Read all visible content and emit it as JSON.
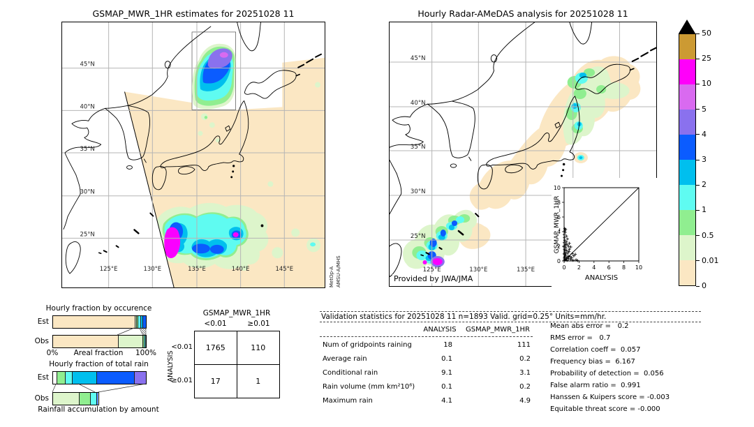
{
  "left_map": {
    "title": "GSMAP_MWR_1HR estimates for 20251028 11",
    "lat_labels": [
      "45°N",
      "40°N",
      "35°N",
      "30°N",
      "25°N"
    ],
    "lon_labels": [
      "125°E",
      "130°E",
      "135°E",
      "140°E",
      "145°E"
    ],
    "sensor_line1": "MetOp-A",
    "sensor_line2": "AMSU-A/MHS"
  },
  "right_map": {
    "title": "Hourly Radar-AMeDAS analysis for 20251028 11",
    "lat_labels": [
      "45°N",
      "40°N",
      "35°N",
      "30°N",
      "25°N"
    ],
    "lon_labels": [
      "125°E",
      "130°E",
      "135°E"
    ],
    "credit": "Provided by JWA/JMA"
  },
  "colorbar": {
    "labels_bottom_to_top": [
      "0",
      "0.01",
      "0.5",
      "1",
      "2",
      "3",
      "4",
      "5",
      "10",
      "25",
      "50"
    ],
    "colors_bottom_to_top": [
      "#fbe7c3",
      "#ddf5cb",
      "#90ee90",
      "#5ffbf1",
      "#00bfee",
      "#0b5cff",
      "#8a71ee",
      "#d96af0",
      "#ff00fa",
      "#cc9a33"
    ],
    "over_color": "#000000",
    "units": "mm/hr"
  },
  "occurrence_chart": {
    "title": "Hourly fraction by occurence",
    "row_labels": [
      "Est",
      "Obs"
    ],
    "xlabel": "Areal fraction",
    "xmin_label": "0%",
    "xmax_label": "100%"
  },
  "totalrain_chart": {
    "title": "Hourly fraction of total rain",
    "row_labels": [
      "Est",
      "Obs"
    ],
    "xlabel": "Rainfall accumulation by amount"
  },
  "contingency": {
    "title": "GSMAP_MWR_1HR",
    "col_labels": [
      "<0.01",
      "≥0.01"
    ],
    "row_axis_label": "ANALYSIS",
    "row_labels": [
      "<0.01",
      "≥0.01"
    ],
    "values": [
      [
        "1765",
        "110"
      ],
      [
        "17",
        "1"
      ]
    ]
  },
  "stats": {
    "header": "Validation statistics for 20251028 11  n=1893 Valid. grid=0.25° Units=mm/hr.",
    "col_headers": [
      "ANALYSIS",
      "GSMAP_MWR_1HR"
    ],
    "rows": [
      [
        "Num of gridpoints raining",
        "18",
        "111"
      ],
      [
        "Average rain",
        "0.1",
        "0.2"
      ],
      [
        "Conditional rain",
        "9.1",
        "3.1"
      ],
      [
        "Rain volume (mm km²10⁶)",
        "0.1",
        "0.2"
      ],
      [
        "Maximum rain",
        "4.1",
        "4.9"
      ]
    ],
    "score_lines": [
      "Mean abs error =   0.2",
      "RMS error =   0.7",
      "Correlation coeff =  0.057",
      "Frequency bias =  6.167",
      "Probability of detection =  0.056",
      "False alarm ratio =  0.991",
      "Hanssen & Kuipers score = -0.003",
      "Equitable threat score = -0.000"
    ]
  },
  "inset": {
    "xlabel": "ANALYSIS",
    "ylabel": "GSMAP_MWR_1HR",
    "ticks": [
      0,
      2,
      4,
      6,
      8,
      10
    ],
    "xlim": [
      0,
      10
    ],
    "ylim": [
      0,
      10
    ]
  },
  "chart_data": [
    {
      "type": "bar",
      "name": "hourly_fraction_by_occurrence",
      "title": "Hourly fraction by occurence",
      "xlabel": "Areal fraction",
      "xlim": [
        0,
        100
      ],
      "bins_mm_per_hr": [
        "0–0.01",
        "0.01–0.5",
        "0.5–1",
        "1–2",
        "2–3",
        "3–4"
      ],
      "colors": [
        "#fbe7c3",
        "#ddf5cb",
        "#90ee90",
        "#5ffbf1",
        "#00bfee",
        "#0b5cff"
      ],
      "series": [
        {
          "name": "Est",
          "values": [
            88,
            1.5,
            1.5,
            3,
            2.5,
            3.5
          ]
        },
        {
          "name": "Obs",
          "values": [
            70,
            26.5,
            1.5,
            1.5,
            0.5,
            0
          ]
        }
      ]
    },
    {
      "type": "bar",
      "name": "hourly_fraction_of_total_rain",
      "title": "Hourly fraction of total rain",
      "xlabel": "Rainfall accumulation by amount",
      "series": [
        {
          "name": "Est",
          "length_frac": 1.0,
          "values": [
            4,
            8.5,
            8,
            26.5,
            40.5,
            12.5
          ],
          "colors": [
            "#ffffff",
            "#90ee90",
            "#5ffbf1",
            "#00bfee",
            "#0b5cff",
            "#8a71ee"
          ]
        },
        {
          "name": "Obs",
          "length_frac": 0.485,
          "values": [
            27.5,
            12,
            7.5,
            1.5
          ],
          "colors": [
            "#ddf5cb",
            "#90ee90",
            "#5ffbf1",
            "#0b5cff"
          ]
        }
      ]
    },
    {
      "type": "table",
      "name": "contingency_2x2",
      "col_header": "GSMAP_MWR_1HR",
      "row_header": "ANALYSIS",
      "col_labels": [
        "<0.01",
        "≥0.01"
      ],
      "row_labels": [
        "<0.01",
        "≥0.01"
      ],
      "values": [
        [
          1765,
          110
        ],
        [
          17,
          1
        ]
      ]
    },
    {
      "type": "scatter",
      "name": "analysis_vs_gsmap",
      "xlabel": "ANALYSIS",
      "ylabel": "GSMAP_MWR_1HR",
      "xlim": [
        0,
        10
      ],
      "ylim": [
        0,
        10
      ],
      "identity_line": true,
      "marker": "+",
      "points": [
        [
          0.05,
          0.2
        ],
        [
          0.1,
          1.2
        ],
        [
          0.1,
          2.1
        ],
        [
          0.15,
          3.9
        ],
        [
          0.2,
          4.3
        ],
        [
          0.1,
          4.1
        ],
        [
          0.05,
          3.2
        ],
        [
          0.3,
          2.6
        ],
        [
          0.25,
          1.8
        ],
        [
          0.4,
          2.2
        ],
        [
          0.5,
          1.1
        ],
        [
          0.6,
          2.0
        ],
        [
          0.7,
          1.6
        ],
        [
          0.9,
          1.9
        ],
        [
          1.1,
          1.0
        ],
        [
          0.8,
          0.6
        ],
        [
          1.3,
          0.7
        ],
        [
          1.5,
          0.9
        ],
        [
          0.2,
          0.15
        ],
        [
          0.3,
          0.4
        ],
        [
          0.15,
          0.7
        ],
        [
          0.05,
          0.9
        ],
        [
          0.35,
          1.4
        ],
        [
          0.45,
          3.0
        ],
        [
          0.1,
          2.8
        ],
        [
          0.2,
          2.3
        ],
        [
          0.05,
          1.6
        ],
        [
          0.6,
          0.3
        ],
        [
          0.9,
          0.2
        ],
        [
          1.2,
          0.1
        ],
        [
          1.6,
          0.15
        ],
        [
          0.4,
          0.1
        ],
        [
          0.55,
          0.65
        ],
        [
          0.05,
          0.4
        ],
        [
          0.02,
          2.5
        ],
        [
          0.02,
          3.6
        ],
        [
          0.08,
          4.4
        ],
        [
          0.3,
          3.4
        ],
        [
          0.7,
          2.4
        ],
        [
          0.02,
          0.05
        ],
        [
          0.15,
          0.25
        ],
        [
          0.5,
          0.5
        ],
        [
          1.0,
          0.45
        ],
        [
          0.25,
          0.95
        ],
        [
          0.65,
          1.3
        ],
        [
          1.8,
          0.05
        ],
        [
          0.02,
          1.0
        ],
        [
          0.02,
          1.9
        ],
        [
          0.12,
          1.45
        ],
        [
          0.08,
          0.55
        ]
      ]
    },
    {
      "type": "table",
      "name": "validation_stats",
      "columns": [
        "ANALYSIS",
        "GSMAP_MWR_1HR"
      ],
      "rows": [
        {
          "label": "Num of gridpoints raining",
          "analysis": 18,
          "gsmap": 111
        },
        {
          "label": "Average rain",
          "analysis": 0.1,
          "gsmap": 0.2
        },
        {
          "label": "Conditional rain",
          "analysis": 9.1,
          "gsmap": 3.1
        },
        {
          "label": "Rain volume (mm km²10⁶)",
          "analysis": 0.1,
          "gsmap": 0.2
        },
        {
          "label": "Maximum rain",
          "analysis": 4.1,
          "gsmap": 4.9
        }
      ],
      "scores": {
        "mean_abs_error": 0.2,
        "rms_error": 0.7,
        "correlation_coeff": 0.057,
        "frequency_bias": 6.167,
        "probability_of_detection": 0.056,
        "false_alarm_ratio": 0.991,
        "hanssen_kuipers_score": -0.003,
        "equitable_threat_score": -0.0
      }
    }
  ]
}
